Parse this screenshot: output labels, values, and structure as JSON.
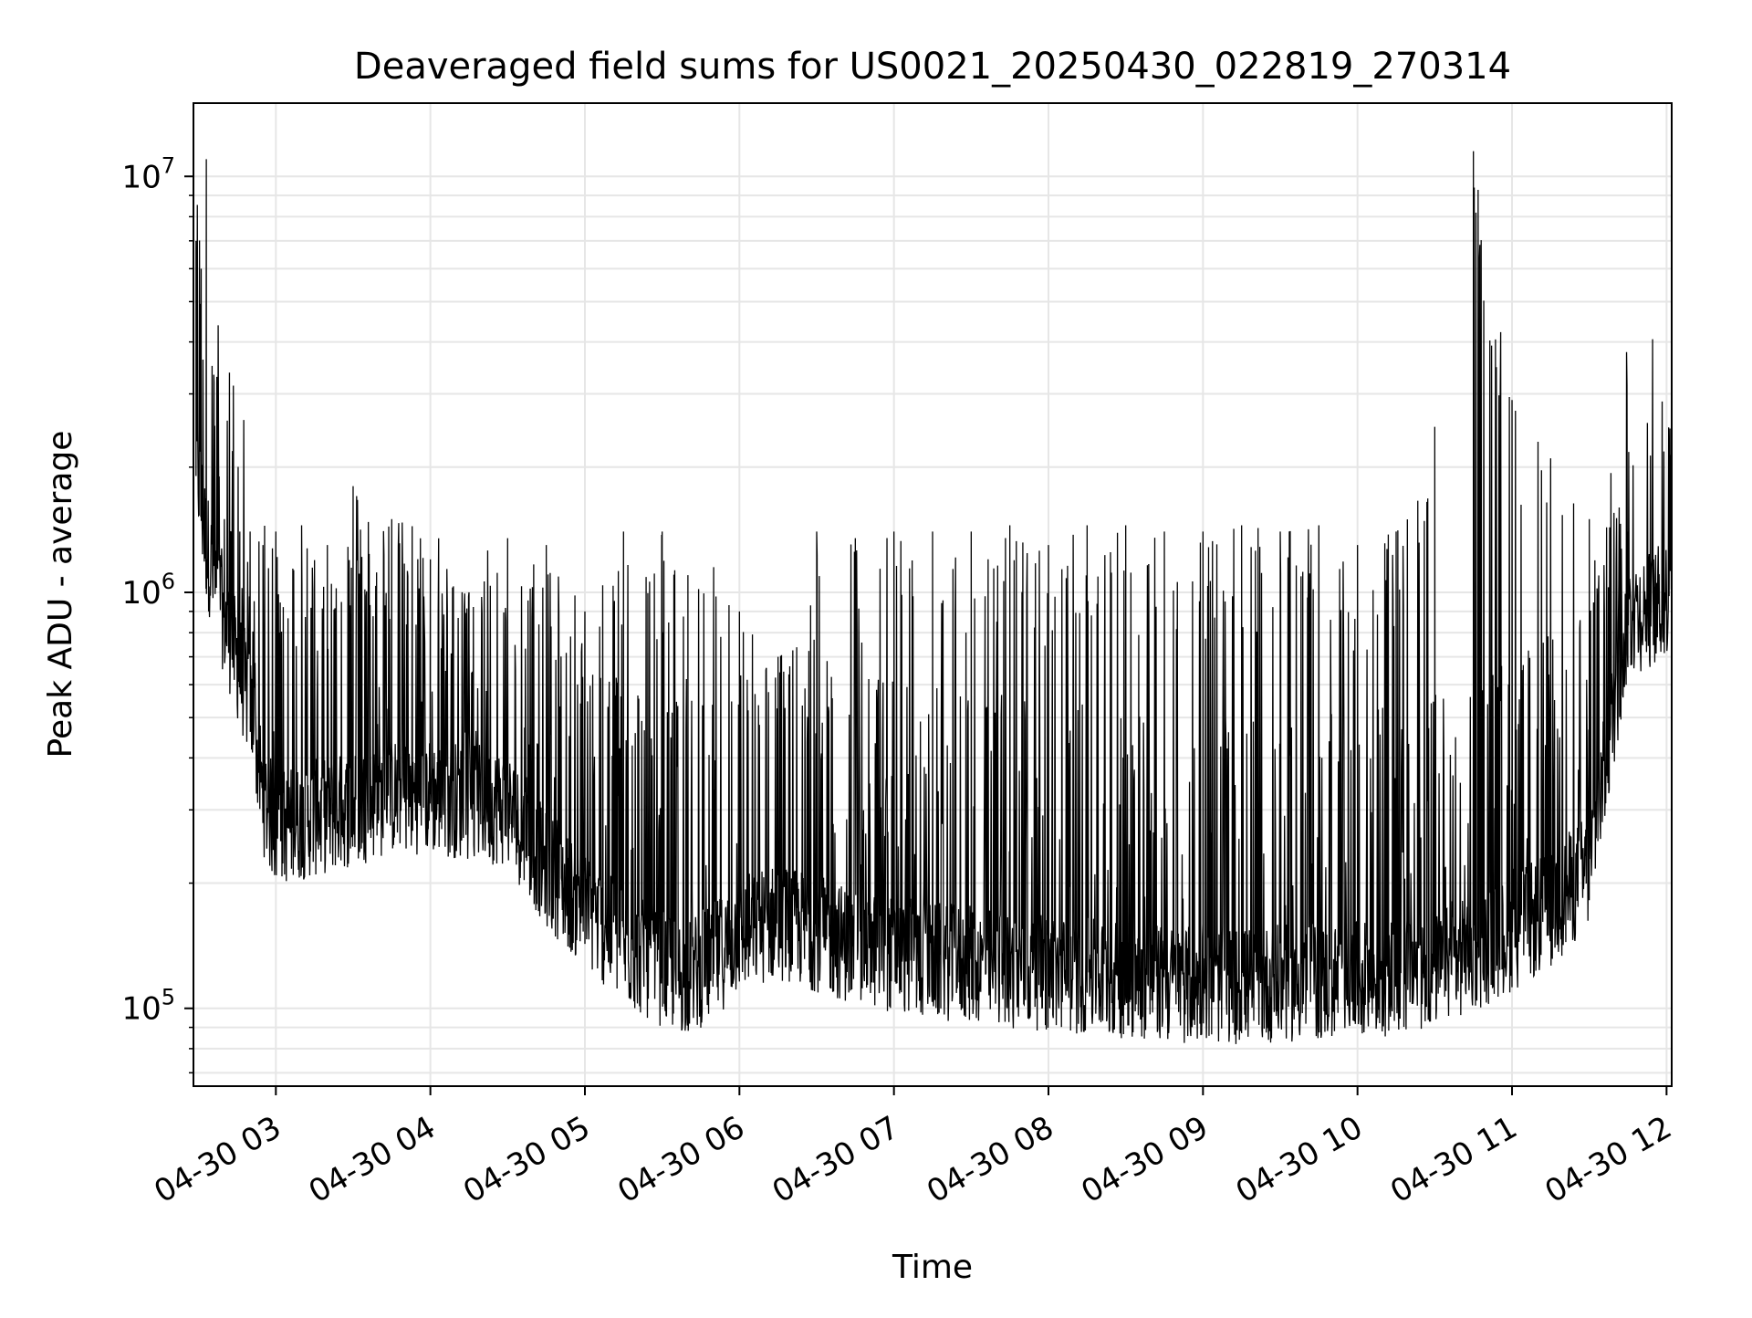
{
  "chart_data": {
    "type": "line",
    "title": "Deaveraged field sums for US0021_20250430_022819_270314",
    "xlabel": "Time",
    "ylabel": "Peak ADU - average",
    "yscale": "log",
    "grid": true,
    "line_color": "#000000",
    "xlim": [
      "2025-04-30 02:28",
      "2025-04-30 12:02"
    ],
    "ylim": [
      65000,
      15000000
    ],
    "x_ticks": [
      {
        "value": "2025-04-30 03:00",
        "label": "04-30 03"
      },
      {
        "value": "2025-04-30 04:00",
        "label": "04-30 04"
      },
      {
        "value": "2025-04-30 05:00",
        "label": "04-30 05"
      },
      {
        "value": "2025-04-30 06:00",
        "label": "04-30 06"
      },
      {
        "value": "2025-04-30 07:00",
        "label": "04-30 07"
      },
      {
        "value": "2025-04-30 08:00",
        "label": "04-30 08"
      },
      {
        "value": "2025-04-30 09:00",
        "label": "04-30 09"
      },
      {
        "value": "2025-04-30 10:00",
        "label": "04-30 10"
      },
      {
        "value": "2025-04-30 11:00",
        "label": "04-30 11"
      },
      {
        "value": "2025-04-30 12:00",
        "label": "04-30 12"
      }
    ],
    "y_ticks": [
      {
        "value": 100000,
        "base": "10",
        "exp": "5"
      },
      {
        "value": 1000000,
        "base": "10",
        "exp": "6"
      },
      {
        "value": 10000000,
        "base": "10",
        "exp": "7"
      }
    ],
    "series": [
      {
        "values_note_free": true,
        "x": [
          "2025-04-30 02:29",
          "2025-04-30 02:31",
          "2025-04-30 02:33",
          "2025-04-30 02:36",
          "2025-04-30 02:38",
          "2025-04-30 02:40",
          "2025-04-30 02:43",
          "2025-04-30 02:46",
          "2025-04-30 02:50",
          "2025-04-30 02:55",
          "2025-04-30 03:00",
          "2025-04-30 03:10",
          "2025-04-30 03:20",
          "2025-04-30 03:30",
          "2025-04-30 03:45",
          "2025-04-30 04:00",
          "2025-04-30 04:15",
          "2025-04-30 04:30",
          "2025-04-30 04:45",
          "2025-04-30 05:00",
          "2025-04-30 05:15",
          "2025-04-30 05:30",
          "2025-04-30 05:40",
          "2025-04-30 05:50",
          "2025-04-30 06:00",
          "2025-04-30 06:15",
          "2025-04-30 06:30",
          "2025-04-30 06:45",
          "2025-04-30 07:00",
          "2025-04-30 07:15",
          "2025-04-30 07:30",
          "2025-04-30 07:45",
          "2025-04-30 08:00",
          "2025-04-30 08:15",
          "2025-04-30 08:30",
          "2025-04-30 08:45",
          "2025-04-30 09:00",
          "2025-04-30 09:15",
          "2025-04-30 09:30",
          "2025-04-30 09:45",
          "2025-04-30 10:00",
          "2025-04-30 10:15",
          "2025-04-30 10:30",
          "2025-04-30 10:45",
          "2025-04-30 11:00",
          "2025-04-30 11:15",
          "2025-04-30 11:30",
          "2025-04-30 11:45",
          "2025-04-30 11:55",
          "2025-04-30 12:00",
          "2025-04-30 12:02"
        ],
        "baseline": [
          2000000,
          1500000,
          1200000,
          1000000,
          900000,
          800000,
          700000,
          600000,
          500000,
          300000,
          250000,
          260000,
          270000,
          280000,
          300000,
          300000,
          290000,
          280000,
          200000,
          160000,
          130000,
          115000,
          110000,
          120000,
          140000,
          150000,
          140000,
          130000,
          125000,
          120000,
          118000,
          115000,
          112000,
          110000,
          108000,
          106000,
          105000,
          105000,
          106000,
          107000,
          108000,
          110000,
          115000,
          125000,
          140000,
          160000,
          200000,
          800000,
          850000,
          900000,
          950000
        ],
        "peaks": [
          7000000,
          6000000,
          11000000,
          3200000,
          1900000,
          1500000,
          1450000,
          1400000,
          1400000,
          1300000,
          1400000,
          1450000,
          1300000,
          1800000,
          1500000,
          1200000,
          1000000,
          1350000,
          1300000,
          900000,
          1400000,
          1400000,
          1100000,
          1150000,
          900000,
          700000,
          1400000,
          1350000,
          1400000,
          1400000,
          1400000,
          1450000,
          1300000,
          1450000,
          1450000,
          1400000,
          1400000,
          1450000,
          1400000,
          1450000,
          1300000,
          1400000,
          2500000,
          11500000,
          2900000,
          2100000,
          1500000,
          1400000,
          1200000,
          1000000,
          900000
        ]
      }
    ]
  }
}
